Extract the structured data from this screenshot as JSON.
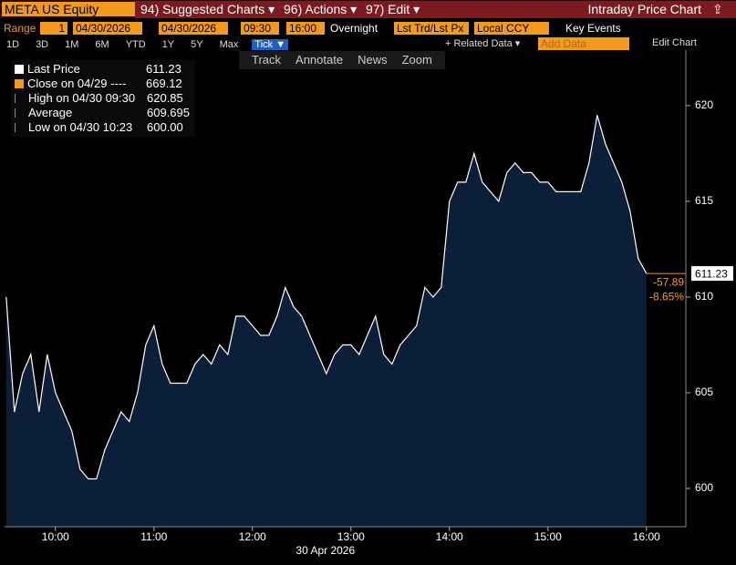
{
  "header": {
    "security": "META US Equity",
    "menus": [
      "94) Suggested Charts ▾",
      "96) Actions ▾",
      "97) Edit ▾"
    ],
    "title": "Intraday Price Chart"
  },
  "range_bar": {
    "label": "Range",
    "period": "1",
    "start_date": "04/30/2026",
    "end_date": "04/30/2026",
    "start_time": "09:30",
    "end_time": "16:00",
    "overnight": "Overnight",
    "price_type": "Lst Trd/Lst Px",
    "currency": "Local CCY",
    "key_events": "Key Events"
  },
  "period_buttons": [
    "1D",
    "3D",
    "1M",
    "6M",
    "YTD",
    "1Y",
    "5Y",
    "Max",
    "Tick ▼"
  ],
  "right_tools": {
    "related": "+ Related Data ▾",
    "add_data": "Add Data",
    "edit_chart": "Edit Chart"
  },
  "chart_tools": [
    "Track",
    "Annotate",
    "News",
    "Zoom"
  ],
  "legend": [
    {
      "label": "Close on 04/29 ----",
      "value": "669.12"
    },
    {
      "label": "High on 04/30 09:30",
      "value": "620.85"
    },
    {
      "label": "Average",
      "value": "609.695"
    },
    {
      "label": "Low on 04/30 10:23",
      "value": "600.00"
    }
  ],
  "chart_data": {
    "type": "area",
    "x": [
      570,
      575,
      580,
      585,
      590,
      595,
      600,
      605,
      610,
      615,
      620,
      625,
      630,
      635,
      640,
      645,
      650,
      655,
      660,
      665,
      670,
      675,
      680,
      685,
      690,
      695,
      700,
      705,
      710,
      715,
      720,
      725,
      730,
      735,
      740,
      745,
      750,
      755,
      760,
      765,
      770,
      775,
      780,
      785,
      790,
      795,
      800,
      805,
      810,
      815,
      820,
      825,
      830,
      835,
      840,
      845,
      850,
      855,
      860,
      865,
      870,
      875,
      880,
      885,
      890,
      895,
      900,
      905,
      910,
      915,
      920,
      925,
      930,
      935,
      940,
      945,
      950,
      955,
      960
    ],
    "series": [
      {
        "name": "Last Price",
        "color": "#ffffff",
        "fill": "#0c1f38",
        "last_value": "611.23",
        "values": [
          610,
          604,
          606,
          607,
          604,
          607,
          605,
          604,
          603,
          601,
          600.5,
          600.5,
          602,
          603,
          604,
          603.5,
          605,
          607.5,
          608.5,
          606.5,
          605.5,
          605.5,
          605.5,
          606.5,
          607,
          606.5,
          607.5,
          607,
          609,
          609,
          608.5,
          608,
          608,
          609,
          610.5,
          609.5,
          609,
          608,
          607,
          606,
          607,
          607.5,
          607.5,
          607,
          608,
          609,
          607,
          606.5,
          607.5,
          608,
          608.5,
          610.5,
          610,
          610.5,
          615,
          616,
          616,
          617.5,
          616,
          615.5,
          615,
          616.5,
          617,
          616.5,
          616.5,
          616,
          616,
          615.5,
          615.5,
          615.5,
          615.5,
          617,
          619.5,
          618,
          617,
          616,
          614.5,
          612,
          611.23
        ]
      }
    ],
    "change": "-57.89",
    "change_pct": "-8.65%",
    "xlim": [
      569,
      984
    ],
    "xticks": [
      {
        "value": 600,
        "label": "10:00"
      },
      {
        "value": 660,
        "label": "11:00"
      },
      {
        "value": 720,
        "label": "12:00"
      },
      {
        "value": 780,
        "label": "13:00"
      },
      {
        "value": 840,
        "label": "14:00"
      },
      {
        "value": 900,
        "label": "15:00"
      },
      {
        "value": 960,
        "label": "16:00"
      }
    ],
    "xlabel": "30 Apr 2026",
    "ylim": [
      598,
      622.9
    ],
    "yticks": [
      600,
      605,
      610,
      615,
      620
    ],
    "grid": false
  }
}
